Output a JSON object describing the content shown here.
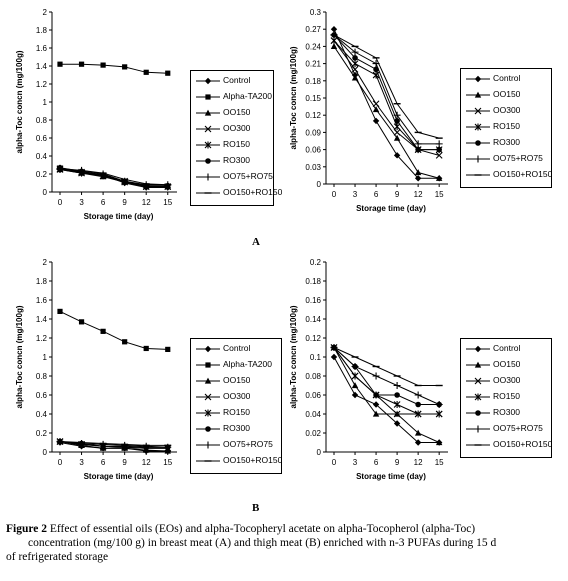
{
  "figure": {
    "label_a": "A",
    "label_b": "B",
    "caption_label": "Figure 2",
    "caption_line1": "Effect of essential oils (EOs) and alpha-Tocopheryl acetate on alpha-Tocopherol (alpha-Toc)",
    "caption_line2": "concentration (mg/100 g) in breast meat (A) and thigh meat (B) enriched with n-3 PUFAs during 15 d",
    "caption_line3": "of refrigerated storage"
  },
  "chart_data": [
    {
      "type": "line",
      "xlabel": "Storage time (day)",
      "ylabel": "alpha-Toc concn (mg/100g)",
      "categories": [
        "0",
        "3",
        "6",
        "9",
        "12",
        "15"
      ],
      "ylim": [
        0,
        2
      ],
      "yticks": [
        "0",
        "0.2",
        "0.4",
        "0.6",
        "0.8",
        "1",
        "1.2",
        "1.4",
        "1.6",
        "1.8",
        "2"
      ],
      "legend_position": "right",
      "series": [
        {
          "name": "Control",
          "values": [
            0.27,
            0.22,
            0.19,
            0.1,
            0.05,
            0.05
          ]
        },
        {
          "name": "Alpha-TA200",
          "values": [
            1.42,
            1.42,
            1.41,
            1.39,
            1.33,
            1.32
          ]
        },
        {
          "name": "OO150",
          "values": [
            0.25,
            0.21,
            0.17,
            0.11,
            0.06,
            0.06
          ]
        },
        {
          "name": "OO300",
          "values": [
            0.26,
            0.22,
            0.18,
            0.12,
            0.06,
            0.06
          ]
        },
        {
          "name": "RO150",
          "values": [
            0.25,
            0.21,
            0.18,
            0.11,
            0.06,
            0.06
          ]
        },
        {
          "name": "RO300",
          "values": [
            0.27,
            0.23,
            0.19,
            0.12,
            0.07,
            0.07
          ]
        },
        {
          "name": "OO75+RO75",
          "values": [
            0.25,
            0.24,
            0.2,
            0.12,
            0.08,
            0.08
          ]
        },
        {
          "name": "OO150+RO150",
          "values": [
            0.26,
            0.24,
            0.21,
            0.14,
            0.09,
            0.08
          ]
        }
      ]
    },
    {
      "type": "line",
      "xlabel": "Storage time (day)",
      "ylabel": "alpha-Toc concn (mg/100g)",
      "categories": [
        "0",
        "3",
        "6",
        "9",
        "12",
        "15"
      ],
      "ylim": [
        0,
        0.3
      ],
      "yticks": [
        "0",
        "0.03",
        "0.06",
        "0.09",
        "0.12",
        "0.15",
        "0.18",
        "0.21",
        "0.24",
        "0.27",
        "0.3"
      ],
      "legend_position": "right",
      "series": [
        {
          "name": "Control",
          "values": [
            0.27,
            0.19,
            0.11,
            0.05,
            0.01,
            0.01
          ]
        },
        {
          "name": "OO150",
          "values": [
            0.24,
            0.185,
            0.13,
            0.08,
            0.02,
            0.01
          ]
        },
        {
          "name": "OO300",
          "values": [
            0.25,
            0.2,
            0.14,
            0.09,
            0.06,
            0.05
          ]
        },
        {
          "name": "RO150",
          "values": [
            0.25,
            0.21,
            0.19,
            0.1,
            0.06,
            0.06
          ]
        },
        {
          "name": "RO300",
          "values": [
            0.26,
            0.22,
            0.2,
            0.11,
            0.06,
            0.06
          ]
        },
        {
          "name": "OO75+RO75",
          "values": [
            0.26,
            0.23,
            0.21,
            0.12,
            0.07,
            0.07
          ]
        },
        {
          "name": "OO150+RO150",
          "values": [
            0.26,
            0.24,
            0.22,
            0.14,
            0.09,
            0.08
          ]
        }
      ]
    },
    {
      "type": "line",
      "xlabel": "Storage time (day)",
      "ylabel": "alpha-Toc concn (mg/100g)",
      "categories": [
        "0",
        "3",
        "6",
        "9",
        "12",
        "15"
      ],
      "ylim": [
        0,
        2
      ],
      "yticks": [
        "0",
        "0.2",
        "0.4",
        "0.6",
        "0.8",
        "1",
        "1.2",
        "1.4",
        "1.6",
        "1.8",
        "2"
      ],
      "legend_position": "right",
      "series": [
        {
          "name": "Control",
          "values": [
            0.1,
            0.06,
            0.04,
            0.04,
            0.01,
            0.01
          ]
        },
        {
          "name": "Alpha-TA200",
          "values": [
            1.48,
            1.37,
            1.27,
            1.16,
            1.09,
            1.08
          ]
        },
        {
          "name": "OO150",
          "values": [
            0.11,
            0.07,
            0.04,
            0.04,
            0.02,
            0.01
          ]
        },
        {
          "name": "OO300",
          "values": [
            0.11,
            0.08,
            0.06,
            0.05,
            0.04,
            0.04
          ]
        },
        {
          "name": "RO150",
          "values": [
            0.11,
            0.08,
            0.06,
            0.05,
            0.04,
            0.04
          ]
        },
        {
          "name": "RO300",
          "values": [
            0.11,
            0.09,
            0.06,
            0.06,
            0.05,
            0.05
          ]
        },
        {
          "name": "OO75+RO75",
          "values": [
            0.11,
            0.09,
            0.08,
            0.07,
            0.06,
            0.05
          ]
        },
        {
          "name": "OO150+RO150",
          "values": [
            0.11,
            0.1,
            0.09,
            0.08,
            0.07,
            0.07
          ]
        }
      ]
    },
    {
      "type": "line",
      "xlabel": "Storage time (day)",
      "ylabel": "alpha-Toc concn (mg/100g)",
      "categories": [
        "0",
        "3",
        "6",
        "9",
        "12",
        "15"
      ],
      "ylim": [
        0,
        0.2
      ],
      "yticks": [
        "0",
        "0.02",
        "0.04",
        "0.06",
        "0.08",
        "0.1",
        "0.12",
        "0.14",
        "0.16",
        "0.18",
        "0.2"
      ],
      "legend_position": "right",
      "series": [
        {
          "name": "Control",
          "values": [
            0.1,
            0.06,
            0.05,
            0.03,
            0.01,
            0.01
          ]
        },
        {
          "name": "OO150",
          "values": [
            0.11,
            0.07,
            0.04,
            0.04,
            0.02,
            0.01
          ]
        },
        {
          "name": "OO300",
          "values": [
            0.11,
            0.08,
            0.06,
            0.04,
            0.04,
            0.04
          ]
        },
        {
          "name": "RO150",
          "values": [
            0.11,
            0.08,
            0.06,
            0.05,
            0.04,
            0.04
          ]
        },
        {
          "name": "RO300",
          "values": [
            0.11,
            0.09,
            0.06,
            0.06,
            0.05,
            0.05
          ]
        },
        {
          "name": "OO75+RO75",
          "values": [
            0.11,
            0.09,
            0.08,
            0.07,
            0.06,
            0.05
          ]
        },
        {
          "name": "OO150+RO150",
          "values": [
            0.11,
            0.1,
            0.09,
            0.08,
            0.07,
            0.07
          ]
        }
      ]
    }
  ]
}
